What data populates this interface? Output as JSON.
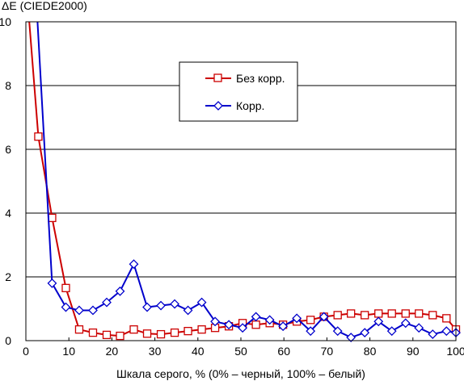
{
  "chart_data": {
    "type": "line",
    "title": "",
    "ylabel": "ΔE (CIEDE2000)",
    "xlabel": "Шкала серого, % (0% – черный, 100% – белый)",
    "xlim": [
      0,
      100
    ],
    "ylim": [
      0,
      10
    ],
    "xticks": [
      0,
      10,
      20,
      30,
      40,
      50,
      60,
      70,
      80,
      90,
      100
    ],
    "yticks": [
      0,
      2,
      4,
      6,
      8,
      10
    ],
    "grid": "horizontal",
    "legend_position": "top-center",
    "series": [
      {
        "name": "Без корр.",
        "color": "#cc0000",
        "marker": "square",
        "x": [
          0.5,
          2.9,
          6.1,
          9.3,
          12.4,
          15.6,
          18.8,
          21.9,
          25.1,
          28.2,
          31.4,
          34.6,
          37.7,
          40.9,
          44.0,
          47.2,
          50.4,
          53.5,
          56.7,
          59.8,
          63.0,
          66.2,
          69.3,
          72.5,
          75.6,
          78.8,
          82.0,
          85.1,
          88.3,
          91.4,
          94.6,
          97.8,
          100.0
        ],
        "y": [
          10.5,
          6.4,
          3.85,
          1.65,
          0.35,
          0.25,
          0.18,
          0.15,
          0.35,
          0.22,
          0.2,
          0.25,
          0.3,
          0.35,
          0.4,
          0.45,
          0.55,
          0.5,
          0.55,
          0.5,
          0.6,
          0.65,
          0.75,
          0.8,
          0.85,
          0.8,
          0.85,
          0.85,
          0.85,
          0.85,
          0.8,
          0.7,
          0.35
        ]
      },
      {
        "name": "Корр.",
        "color": "#0000cc",
        "marker": "diamond",
        "x": [
          2.5,
          6.1,
          9.3,
          12.4,
          15.6,
          18.8,
          21.9,
          25.1,
          28.2,
          31.4,
          34.6,
          37.7,
          40.9,
          44.0,
          47.2,
          50.4,
          53.5,
          56.7,
          59.8,
          63.0,
          66.2,
          69.3,
          72.5,
          75.6,
          78.8,
          82.0,
          85.1,
          88.3,
          91.4,
          94.6,
          97.8,
          100.0
        ],
        "y": [
          10.5,
          1.8,
          1.05,
          0.95,
          0.95,
          1.2,
          1.55,
          2.4,
          1.05,
          1.1,
          1.15,
          0.95,
          1.2,
          0.6,
          0.5,
          0.4,
          0.75,
          0.65,
          0.45,
          0.7,
          0.3,
          0.75,
          0.3,
          0.1,
          0.25,
          0.6,
          0.3,
          0.55,
          0.4,
          0.2,
          0.3,
          0.25
        ]
      }
    ]
  }
}
